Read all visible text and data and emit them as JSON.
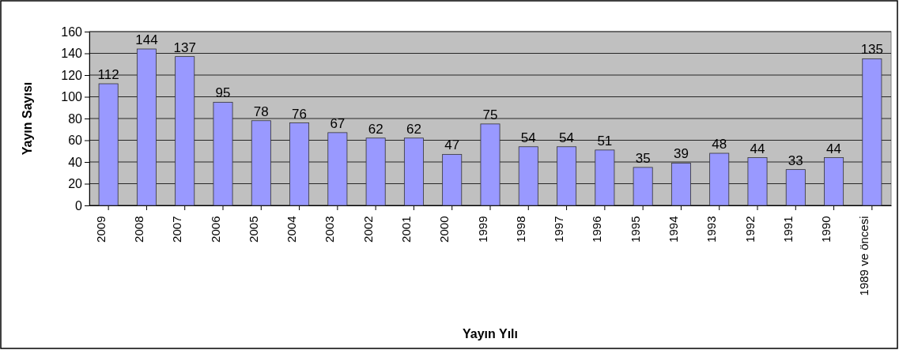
{
  "chart_data": {
    "type": "bar",
    "xlabel": "Yayın Yılı",
    "ylabel": "Yayın Sayısı",
    "categories": [
      "2009",
      "2008",
      "2007",
      "2006",
      "2005",
      "2004",
      "2003",
      "2002",
      "2001",
      "2000",
      "1999",
      "1998",
      "1997",
      "1996",
      "1995",
      "1994",
      "1993",
      "1992",
      "1991",
      "1990",
      "1989 ve öncesi"
    ],
    "values": [
      112,
      144,
      137,
      95,
      78,
      76,
      67,
      62,
      62,
      47,
      75,
      54,
      54,
      51,
      35,
      39,
      48,
      44,
      33,
      44,
      135
    ],
    "color": "#9999ff",
    "ylim": [
      0,
      160
    ],
    "yticks": [
      0,
      20,
      40,
      60,
      80,
      100,
      120,
      140,
      160
    ],
    "grid": "y",
    "data_labels": true
  }
}
